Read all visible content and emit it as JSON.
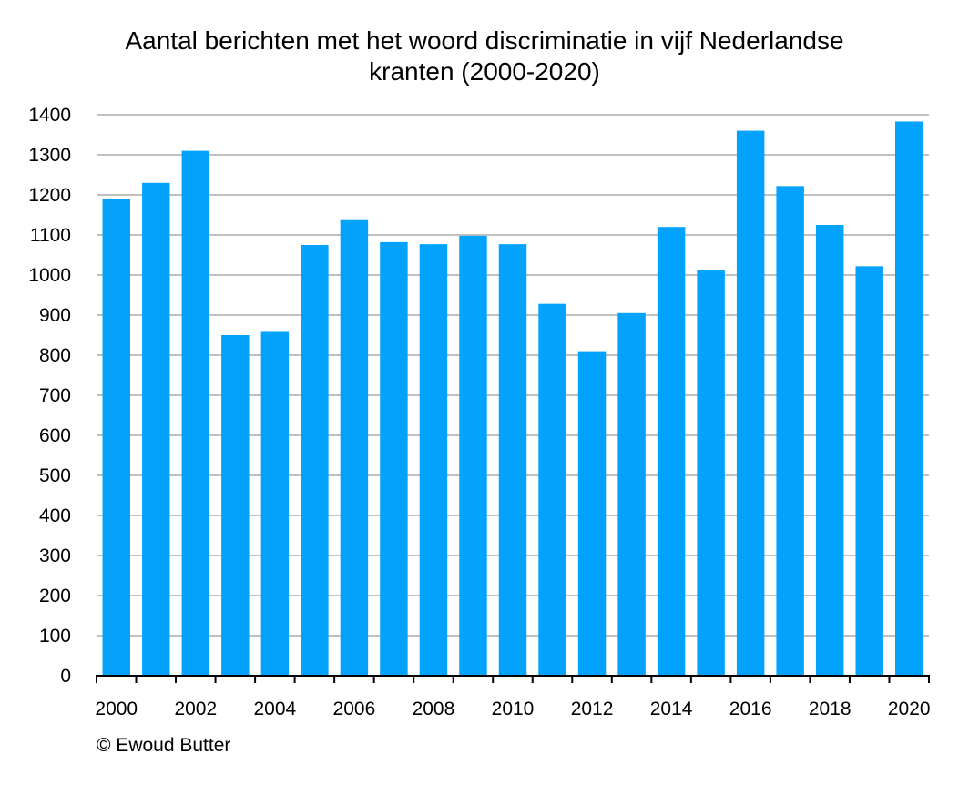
{
  "chart_data": {
    "type": "bar",
    "title_lines": [
      "Aantal berichten met het woord discriminatie in vijf Nederlandse",
      "kranten (2000-2020)"
    ],
    "categories": [
      "2000",
      "2001",
      "2002",
      "2003",
      "2004",
      "2005",
      "2006",
      "2007",
      "2008",
      "2009",
      "2010",
      "2011",
      "2012",
      "2013",
      "2014",
      "2015",
      "2016",
      "2017",
      "2018",
      "2019",
      "2020"
    ],
    "x_tick_labels": [
      "2000",
      "2002",
      "2004",
      "2006",
      "2008",
      "2010",
      "2012",
      "2014",
      "2016",
      "2018",
      "2020"
    ],
    "values": [
      1190,
      1230,
      1310,
      850,
      858,
      1075,
      1137,
      1082,
      1077,
      1098,
      1077,
      928,
      810,
      905,
      1120,
      1012,
      1360,
      1222,
      1125,
      1022,
      1383
    ],
    "ylim": [
      0,
      1400
    ],
    "y_ticks": [
      0,
      100,
      200,
      300,
      400,
      500,
      600,
      700,
      800,
      900,
      1000,
      1100,
      1200,
      1300,
      1400
    ],
    "grid": true,
    "bar_color": "#03a2fc",
    "grid_color": "#c0c0c0"
  },
  "credit": "© Ewoud Butter"
}
